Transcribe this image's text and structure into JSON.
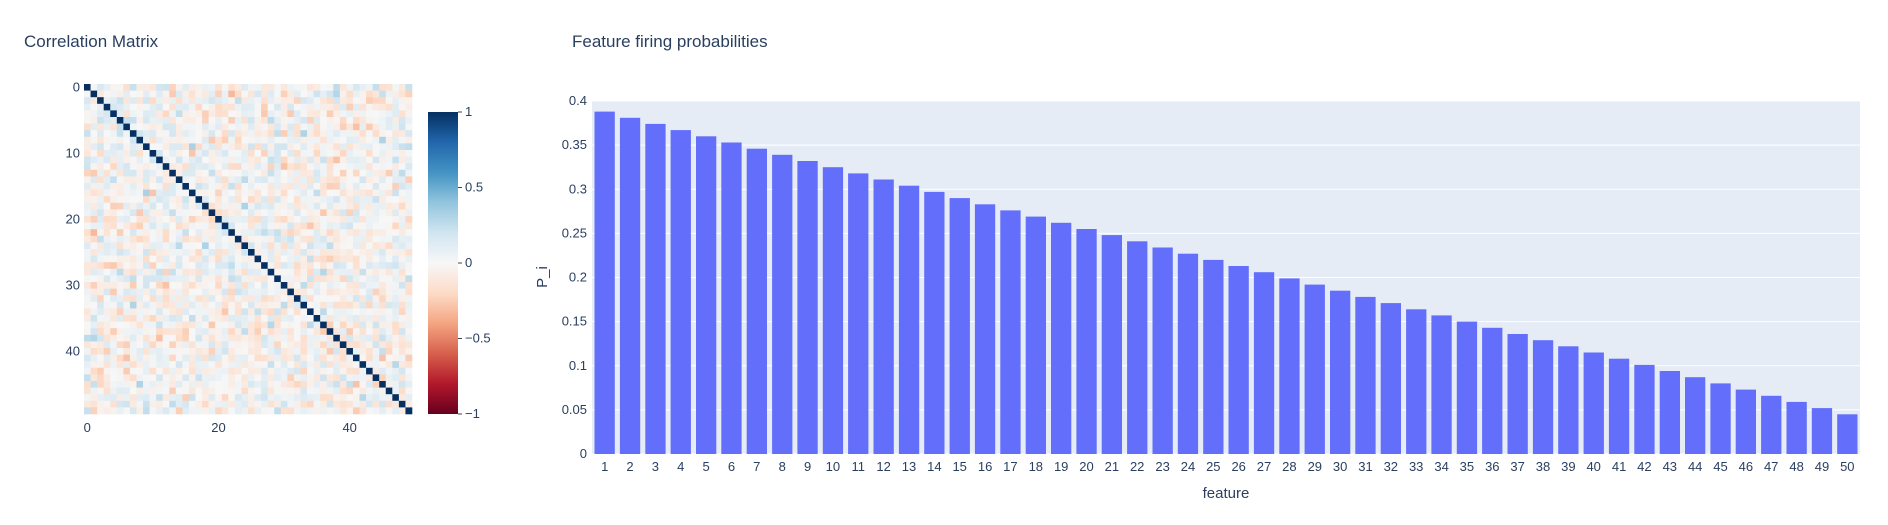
{
  "chart_data": [
    {
      "type": "heatmap",
      "title": "Correlation Matrix",
      "size": 50,
      "diagonal_value": 1,
      "off_diagonal_range": [
        -0.35,
        0.35
      ],
      "x_ticks": [
        "0",
        "20",
        "40"
      ],
      "x_tick_values": [
        0,
        20,
        40
      ],
      "y_ticks": [
        "0",
        "10",
        "20",
        "30",
        "40"
      ],
      "y_tick_values": [
        0,
        10,
        20,
        30,
        40
      ],
      "colorscale": "RdBu",
      "colorbar": {
        "range": [
          -1,
          1
        ],
        "tick_values": [
          1,
          0.5,
          0,
          -0.5,
          -1
        ],
        "tick_labels": [
          "1",
          "0.5",
          "0",
          "−0.5",
          "−1"
        ]
      }
    },
    {
      "type": "bar",
      "title": "Feature firing probabilities",
      "xlabel": "feature",
      "ylabel": "P_i",
      "categories": [
        "1",
        "2",
        "3",
        "4",
        "5",
        "6",
        "7",
        "8",
        "9",
        "10",
        "11",
        "12",
        "13",
        "14",
        "15",
        "16",
        "17",
        "18",
        "19",
        "20",
        "21",
        "22",
        "23",
        "24",
        "25",
        "26",
        "27",
        "28",
        "29",
        "30",
        "31",
        "32",
        "33",
        "34",
        "35",
        "36",
        "37",
        "38",
        "39",
        "40",
        "41",
        "42",
        "43",
        "44",
        "45",
        "46",
        "47",
        "48",
        "49",
        "50"
      ],
      "values": [
        0.388,
        0.381,
        0.374,
        0.367,
        0.36,
        0.353,
        0.346,
        0.339,
        0.332,
        0.325,
        0.318,
        0.311,
        0.304,
        0.297,
        0.29,
        0.283,
        0.276,
        0.269,
        0.262,
        0.255,
        0.248,
        0.241,
        0.234,
        0.227,
        0.22,
        0.213,
        0.206,
        0.199,
        0.192,
        0.185,
        0.178,
        0.171,
        0.164,
        0.157,
        0.15,
        0.143,
        0.136,
        0.129,
        0.122,
        0.115,
        0.108,
        0.101,
        0.094,
        0.087,
        0.08,
        0.073,
        0.066,
        0.059,
        0.052,
        0.045
      ],
      "ylim": [
        0,
        0.4
      ],
      "y_tick_values": [
        0,
        0.05,
        0.1,
        0.15,
        0.2,
        0.25,
        0.3,
        0.35,
        0.4
      ],
      "y_tick_labels": [
        "0",
        "0.05",
        "0.1",
        "0.15",
        "0.2",
        "0.25",
        "0.3",
        "0.35",
        "0.4"
      ],
      "grid": true,
      "bar_color": "#636efa",
      "plot_bg": "#e5ecf6"
    }
  ]
}
